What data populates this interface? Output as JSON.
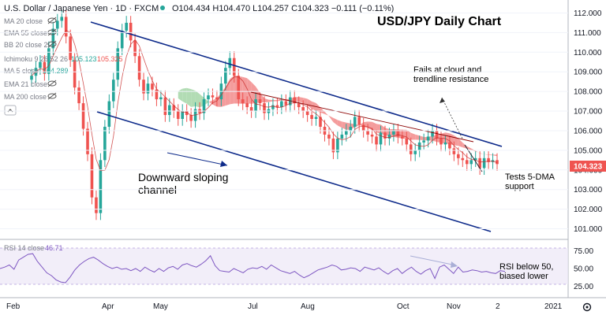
{
  "header": {
    "symbol": "U.S. Dollar / Japanese Yen · 1D · FXCM",
    "ohlc": "O104.434 H104.470 L104.257 C104.323 −0.111 (−0.11%)"
  },
  "indicators": [
    {
      "label": "MA 20 close"
    },
    {
      "label": "EMA 55 close"
    },
    {
      "label": "BB 20 close 2"
    },
    {
      "label": "Ichimoku 9 26 52 26",
      "v1": "105.123",
      "v2": "105.325"
    },
    {
      "label": "MA 5 close",
      "v1": "104.289"
    },
    {
      "label": "EMA 21 close"
    },
    {
      "label": "MA 200 close"
    }
  ],
  "chart_data": {
    "type": "candlestick",
    "title": "USD/JPY Daily Chart",
    "ylim": [
      100.5,
      112.5
    ],
    "y_ticks": [
      "112.000",
      "111.000",
      "110.000",
      "109.000",
      "108.000",
      "107.000",
      "106.000",
      "105.000",
      "104.000",
      "103.000",
      "102.000",
      "101.000"
    ],
    "x_ticks": [
      "Feb",
      "Apr",
      "May",
      "Jul",
      "Aug",
      "Oct",
      "Nov",
      "2",
      "2021"
    ],
    "last_price": "104.323",
    "annotations": {
      "resistance": [
        "Fails at cloud and",
        "trendline resistance"
      ],
      "channel": [
        "Downward sloping",
        "channel"
      ],
      "support": [
        "Tests 5-DMA",
        "support"
      ],
      "rsi": [
        "RSI below 50,",
        "biased lower"
      ]
    },
    "series": [
      {
        "name": "price_close",
        "values": [
          108.8,
          109.2,
          109.5,
          108.9,
          110.2,
          111.2,
          111.6,
          111.8,
          110.8,
          109.6,
          108.2,
          107.4,
          106.1,
          104.8,
          102.6,
          101.8,
          104.5,
          106.2,
          107.5,
          108.6,
          110.2,
          111.1,
          111.5,
          110.6,
          109.8,
          108.6,
          107.9,
          108.4,
          108.1,
          107.6,
          107.7,
          106.8,
          107.3,
          107.0,
          106.6,
          107.0,
          106.8,
          106.5,
          107.1,
          106.9,
          107.6,
          107.8,
          107.7,
          107.6,
          108.4,
          109.2,
          109.7,
          108.8,
          107.6,
          107.4,
          107.2,
          107.0,
          107.6,
          107.4,
          106.9,
          107.1,
          107.3,
          107.2,
          107.5,
          107.3,
          107.7,
          107.4,
          107.2,
          107.0,
          106.8,
          106.6,
          106.7,
          106.2,
          105.8,
          105.6,
          104.9,
          105.6,
          105.8,
          106.0,
          106.2,
          106.7,
          106.3,
          106.0,
          105.8,
          105.7,
          105.3,
          105.9,
          105.6,
          105.8,
          106.0,
          105.7,
          105.6,
          105.3,
          104.8,
          105.0,
          105.4,
          105.5,
          105.7,
          106.0,
          105.6,
          105.3,
          105.4,
          105.1,
          104.8,
          104.6,
          104.5,
          104.3,
          104.5,
          104.6,
          104.1,
          104.6,
          104.4,
          104.5,
          104.3
        ]
      },
      {
        "name": "rsi",
        "values": [
          50,
          52,
          55,
          49,
          62,
          66,
          70,
          71,
          60,
          52,
          44,
          40,
          34,
          31,
          30,
          38,
          48,
          55,
          60,
          64,
          66,
          62,
          57,
          53,
          50,
          52,
          49,
          50,
          47,
          50,
          46,
          52,
          48,
          45,
          50,
          46,
          51,
          53,
          49,
          55,
          57,
          54,
          52,
          56,
          61,
          68,
          54,
          47,
          46,
          45,
          50,
          47,
          44,
          49,
          51,
          50,
          53,
          49,
          55,
          51,
          47,
          45,
          43,
          46,
          41,
          37,
          40,
          44,
          48,
          50,
          52,
          55,
          53,
          48,
          49,
          51,
          50,
          46,
          52,
          50,
          48,
          51,
          46,
          42,
          47,
          50,
          43,
          48,
          52,
          46,
          42,
          47,
          50,
          36,
          52,
          55,
          49,
          43,
          52,
          45,
          46,
          48,
          47,
          45,
          46,
          44,
          43,
          47,
          46
        ]
      }
    ],
    "rsi_value": "46.71",
    "rsi_ticks": [
      "75.00",
      "50.00",
      "25.00"
    ]
  },
  "colors": {
    "up": "#26a69a",
    "down": "#ef5350",
    "trend": "#0d2a8a",
    "cloud_red": "#f28b8b",
    "cloud_green": "#a5d6a7",
    "rsi": "#7e57c2",
    "price_tag": "#ef5350"
  }
}
